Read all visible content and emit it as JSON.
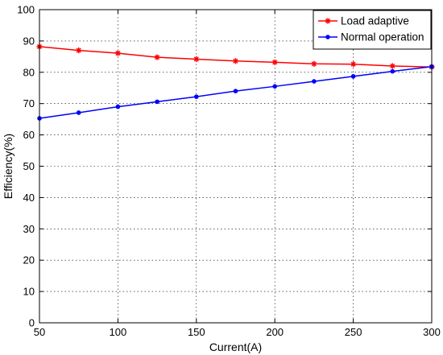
{
  "chart_data": {
    "type": "line",
    "x": [
      50,
      75,
      100,
      125,
      150,
      175,
      200,
      225,
      250,
      275,
      300
    ],
    "series": [
      {
        "name": "Load adaptive",
        "color": "#ff0000",
        "marker": "star",
        "values": [
          88.2,
          87.0,
          86.1,
          84.8,
          84.2,
          83.6,
          83.2,
          82.7,
          82.6,
          82.0,
          81.7
        ]
      },
      {
        "name": "Normal operation",
        "color": "#0000ff",
        "marker": "dot",
        "values": [
          65.3,
          67.1,
          69.0,
          70.6,
          72.2,
          74.0,
          75.5,
          77.1,
          78.7,
          80.3,
          81.8
        ]
      }
    ],
    "xlabel": "Current(A)",
    "ylabel": "Efficiency(%)",
    "xlim": [
      50,
      300
    ],
    "ylim": [
      0,
      100
    ],
    "xticks": [
      50,
      100,
      150,
      200,
      250,
      300
    ],
    "yticks": [
      0,
      10,
      20,
      30,
      40,
      50,
      60,
      70,
      80,
      90,
      100
    ],
    "grid": true,
    "legend_position": "top-right"
  }
}
